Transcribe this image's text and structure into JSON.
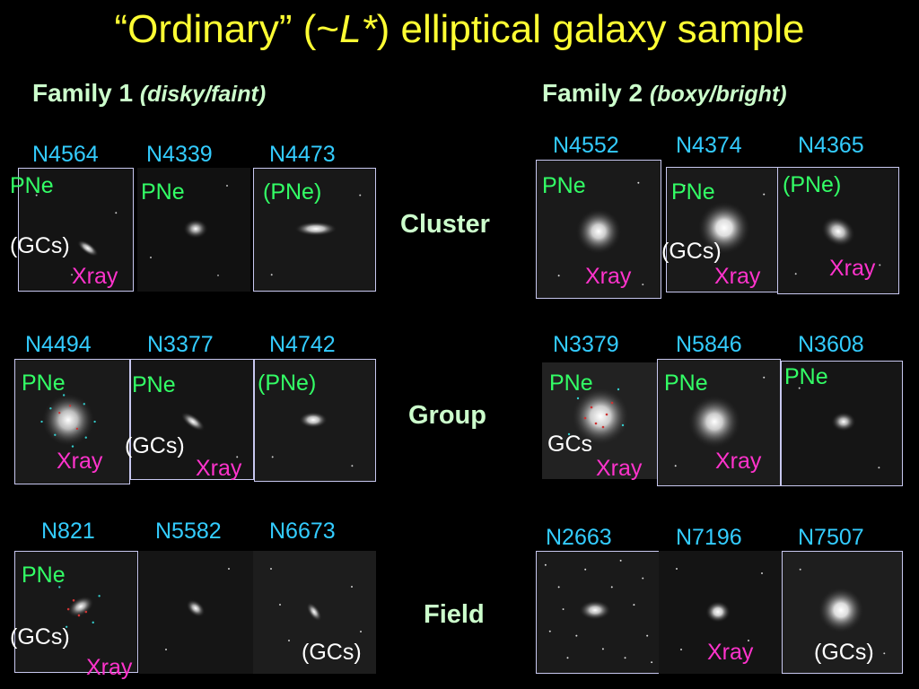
{
  "title": {
    "part1": "“Ordinary” (~",
    "italic": "L*",
    "part2": ") elliptical galaxy sample"
  },
  "families": [
    {
      "name": "Family 1",
      "desc": "(disky/faint)"
    },
    {
      "name": "Family 2",
      "desc": "(boxy/bright)"
    }
  ],
  "environments": [
    "Cluster",
    "Group",
    "Field"
  ],
  "galaxies": {
    "N4564": {
      "name": "N4564",
      "tags": [
        "PNe",
        "(GCs)",
        "Xray"
      ]
    },
    "N4339": {
      "name": "N4339",
      "tags": [
        "PNe"
      ]
    },
    "N4473": {
      "name": "N4473",
      "tags": [
        "(PNe)"
      ]
    },
    "N4552": {
      "name": "N4552",
      "tags": [
        "PNe",
        "Xray"
      ]
    },
    "N4374": {
      "name": "N4374",
      "tags": [
        "PNe",
        "(GCs)",
        "Xray"
      ]
    },
    "N4365": {
      "name": "N4365",
      "tags": [
        "(PNe)",
        "Xray"
      ]
    },
    "N4494": {
      "name": "N4494",
      "tags": [
        "PNe",
        "Xray"
      ]
    },
    "N3377": {
      "name": "N3377",
      "tags": [
        "PNe",
        "(GCs)",
        "Xray"
      ]
    },
    "N4742": {
      "name": "N4742",
      "tags": [
        "(PNe)"
      ]
    },
    "N3379": {
      "name": "N3379",
      "tags": [
        "PNe",
        "GCs",
        "Xray"
      ]
    },
    "N5846": {
      "name": "N5846",
      "tags": [
        "PNe",
        "Xray"
      ]
    },
    "N3608": {
      "name": "N3608",
      "tags": [
        "PNe"
      ]
    },
    "N821": {
      "name": "N821",
      "tags": [
        "PNe",
        "(GCs)",
        "Xray"
      ]
    },
    "N5582": {
      "name": "N5582",
      "tags": []
    },
    "N6673": {
      "name": "N6673",
      "tags": [
        "(GCs)"
      ]
    },
    "N2663": {
      "name": "N2663",
      "tags": []
    },
    "N7196": {
      "name": "N7196",
      "tags": [
        "Xray"
      ]
    },
    "N7507": {
      "name": "N7507",
      "tags": [
        "(GCs)"
      ]
    }
  }
}
